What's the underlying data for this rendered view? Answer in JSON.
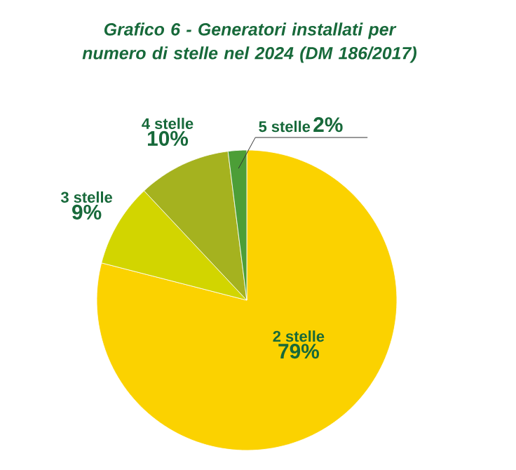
{
  "chart_data": {
    "type": "pie",
    "title": "Grafico 6 - Generatori installati per numero di stelle nel 2024 (DM 186/2017)",
    "categories": [
      "2 stelle",
      "3 stelle",
      "4 stelle",
      "5 stelle"
    ],
    "values": [
      79,
      9,
      10,
      2
    ],
    "value_labels": [
      "79%",
      "9%",
      "10%",
      "2%"
    ],
    "colors": [
      "#fbd200",
      "#d2d500",
      "#a5b21f",
      "#4c9e37"
    ]
  }
}
